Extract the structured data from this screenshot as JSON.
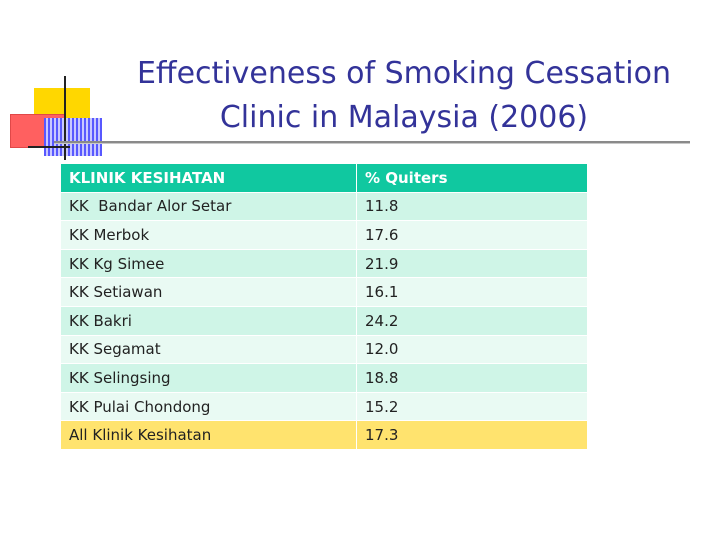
{
  "slide": {
    "title_line1": "Effectiveness of Smoking Cessation",
    "title_line2": "Clinic in Malaysia (2006)"
  },
  "table": {
    "header": [
      "KLINIK KESIHATAN",
      "% Quiters"
    ],
    "rows": [
      [
        "KK  Bandar Alor Setar",
        "11.8"
      ],
      [
        "KK Merbok",
        "17.6"
      ],
      [
        "KK Kg Simee",
        "21.9"
      ],
      [
        "KK Setiawan",
        "16.1"
      ],
      [
        "KK Bakri",
        "24.2"
      ],
      [
        "KK Segamat",
        "12.0"
      ],
      [
        "KK Selingsing",
        "18.8"
      ],
      [
        "KK Pulai Chondong",
        "15.2"
      ]
    ],
    "total": [
      "All Klinik Kesihatan",
      "17.3"
    ]
  },
  "colors": {
    "title": "#333399",
    "header_bg": "#10c8a0",
    "row_odd_bg": "#cff5e7",
    "row_even_bg": "#e9faf3",
    "total_bg": "#ffe36e"
  }
}
